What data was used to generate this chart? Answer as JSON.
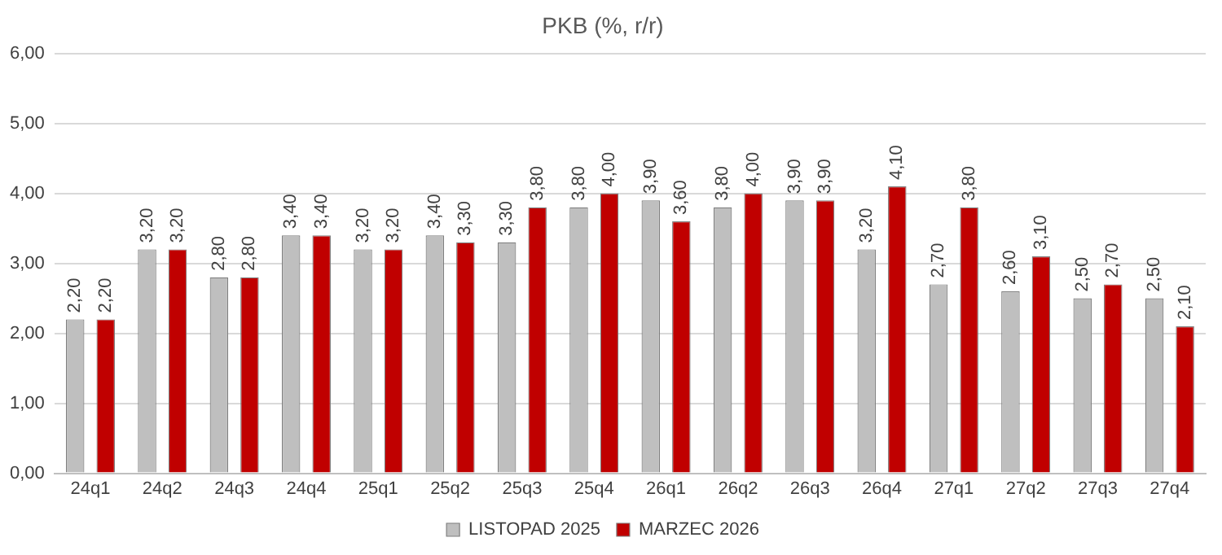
{
  "chart_data": {
    "type": "bar",
    "title": "PKB (%, r/r)",
    "categories": [
      "24q1",
      "24q2",
      "24q3",
      "24q4",
      "25q1",
      "25q2",
      "25q3",
      "25q4",
      "26q1",
      "26q2",
      "26q3",
      "26q4",
      "27q1",
      "27q2",
      "27q3",
      "27q4"
    ],
    "series": [
      {
        "name": "LISTOPAD 2025",
        "color": "#bfbfbf",
        "values": [
          2.2,
          3.2,
          2.8,
          3.4,
          3.2,
          3.4,
          3.3,
          3.8,
          3.9,
          3.8,
          3.9,
          3.2,
          2.7,
          2.6,
          2.5,
          2.5
        ],
        "value_labels": [
          "2,20",
          "3,20",
          "2,80",
          "3,40",
          "3,20",
          "3,40",
          "3,30",
          "3,80",
          "3,90",
          "3,80",
          "3,90",
          "3,20",
          "2,70",
          "2,60",
          "2,50",
          "2,50"
        ]
      },
      {
        "name": "MARZEC 2026",
        "color": "#c00000",
        "values": [
          2.2,
          3.2,
          2.8,
          3.4,
          3.2,
          3.3,
          3.8,
          4.0,
          3.6,
          4.0,
          3.9,
          4.1,
          3.8,
          3.1,
          2.7,
          2.1
        ],
        "value_labels": [
          "2,20",
          "3,20",
          "2,80",
          "3,40",
          "3,20",
          "3,30",
          "3,80",
          "4,00",
          "3,60",
          "4,00",
          "3,90",
          "4,10",
          "3,80",
          "3,10",
          "2,70",
          "2,10"
        ]
      }
    ],
    "ylim": [
      0,
      6
    ],
    "yticks": [
      {
        "value": 0,
        "label": "0,00"
      },
      {
        "value": 1,
        "label": "1,00"
      },
      {
        "value": 2,
        "label": "2,00"
      },
      {
        "value": 3,
        "label": "3,00"
      },
      {
        "value": 4,
        "label": "4,00"
      },
      {
        "value": 5,
        "label": "5,00"
      },
      {
        "value": 6,
        "label": "6,00"
      }
    ],
    "grid": "y",
    "legend": "bottom"
  }
}
